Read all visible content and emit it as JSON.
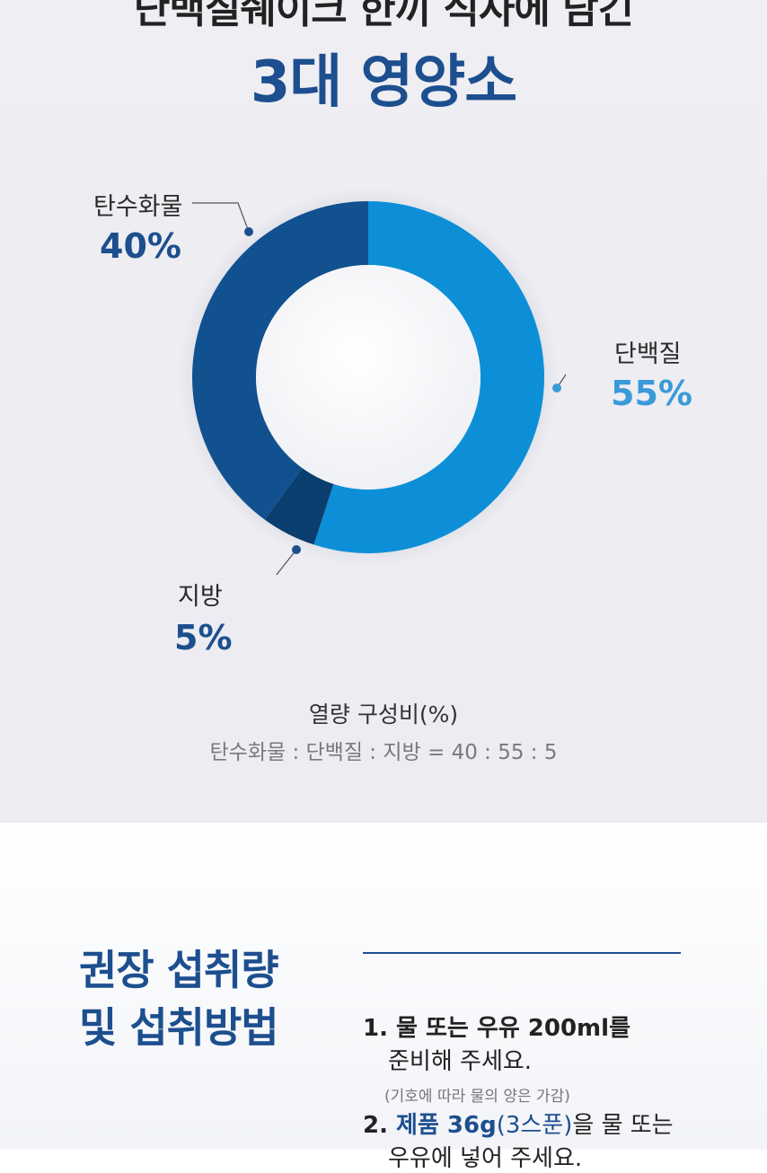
{
  "headline": {
    "line1": "단백질쉐이크 한끼 식사에 담긴",
    "line2": "3대 영양소"
  },
  "chart_data": {
    "type": "pie",
    "categories": [
      "탄수화물",
      "단백질",
      "지방"
    ],
    "values": [
      40,
      55,
      5
    ],
    "colors": [
      "#12518f",
      "#0d8fd8",
      "#0a3e6e"
    ],
    "labels": [
      {
        "name": "탄수화물",
        "percent": "40%",
        "color": "#1d4f8f"
      },
      {
        "name": "단백질",
        "percent": "55%",
        "color": "#3a9ad9"
      },
      {
        "name": "지방",
        "percent": "5%",
        "color": "#1d4f8f"
      }
    ]
  },
  "caption": {
    "title": "열량 구성비(%)",
    "ratio": "탄수화물 : 단백질 : 지방 = 40 : 55 : 5"
  },
  "recommend": {
    "title_line1": "권장 섭취량",
    "title_line2": "및 섭취방법",
    "steps": [
      {
        "num": "1.",
        "line1": "물 또는 우유 200ml를",
        "line2": "준비해 주세요.",
        "note": "(기호에 따라 물의 양은 가감)"
      },
      {
        "num": "2.",
        "highlight": "제품 36g",
        "paren": "(3스푼)",
        "line1_rest": "을 물 또는",
        "line2": "우유에 넣어 주세요."
      }
    ]
  }
}
